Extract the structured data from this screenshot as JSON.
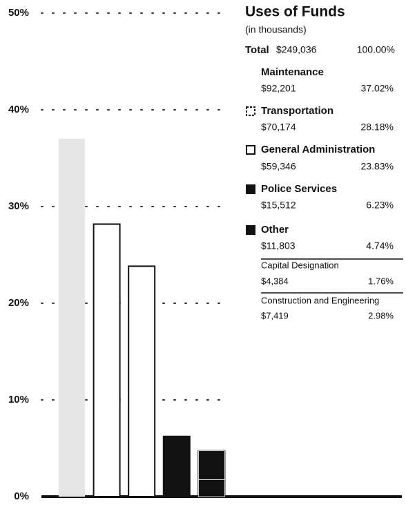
{
  "chart_data": {
    "type": "bar",
    "title": "Uses of Funds",
    "subtitle": "(in thousands)",
    "total_label": "Total",
    "total_amount": "$249,036",
    "total_percent": "100.00%",
    "categories": [
      "Maintenance",
      "Transportation",
      "General Administration",
      "Police Services",
      "Other",
      "Capital Designation",
      "Construction and Engineering"
    ],
    "amounts": [
      "$92,201",
      "$70,174",
      "$59,346",
      "$15,512",
      "$11,803",
      "$4,384",
      "$7,419"
    ],
    "values": [
      37.02,
      28.18,
      23.83,
      6.23,
      4.74,
      1.76,
      2.98
    ],
    "value_labels": [
      "37.02%",
      "28.18%",
      "23.83%",
      "6.23%",
      "4.74%",
      "1.76%",
      "2.98%"
    ],
    "colors": [
      "#e6e6e6",
      "#ffffff",
      "#ffffff",
      "#111111",
      "#111111",
      "#111111",
      "#111111"
    ],
    "ylim": [
      0,
      50
    ],
    "yticks": [
      {
        "value": 0,
        "label": "0%"
      },
      {
        "value": 10,
        "label": "10%"
      },
      {
        "value": 20,
        "label": "20%"
      },
      {
        "value": 30,
        "label": "30%"
      },
      {
        "value": 40,
        "label": "40%"
      },
      {
        "value": 50,
        "label": "50%"
      }
    ],
    "grid": true
  }
}
